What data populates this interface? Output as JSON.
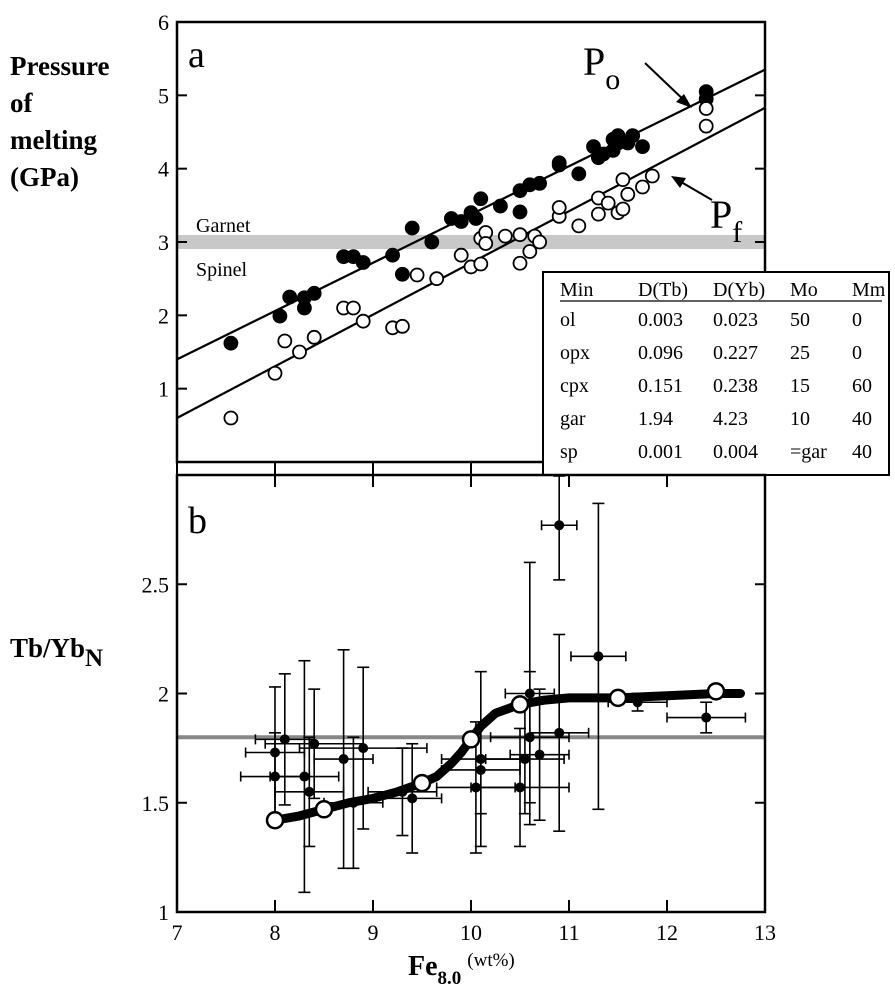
{
  "chart_data": [
    {
      "id": "a",
      "type": "scatter",
      "panel_label": "a",
      "ylabel": [
        "Pressure",
        "of",
        "melting",
        "(GPa)"
      ],
      "xlim": [
        7,
        13
      ],
      "ylim": [
        0,
        6
      ],
      "y_ticks": [
        1,
        2,
        3,
        4,
        5,
        6
      ],
      "y_tick_labels": [
        "1",
        "2",
        "3",
        "4",
        "5",
        "6"
      ],
      "x_ticks": [
        7,
        8,
        9,
        10,
        11,
        12,
        13
      ],
      "grid": false,
      "series": [
        {
          "name": "Po",
          "name_main": "P",
          "name_sub": "o",
          "marker": "filled-circle",
          "points": [
            [
              7.55,
              1.62
            ],
            [
              8.05,
              1.99
            ],
            [
              8.15,
              2.25
            ],
            [
              8.3,
              2.24
            ],
            [
              8.3,
              2.1
            ],
            [
              8.4,
              2.3
            ],
            [
              8.7,
              2.8
            ],
            [
              8.8,
              2.8
            ],
            [
              8.9,
              2.72
            ],
            [
              9.2,
              2.82
            ],
            [
              9.3,
              2.56
            ],
            [
              9.4,
              3.19
            ],
            [
              9.6,
              3.0
            ],
            [
              9.8,
              3.32
            ],
            [
              9.9,
              3.28
            ],
            [
              10.0,
              3.4
            ],
            [
              10.05,
              3.32
            ],
            [
              10.1,
              3.59
            ],
            [
              10.3,
              3.49
            ],
            [
              10.5,
              3.7
            ],
            [
              10.5,
              3.41
            ],
            [
              10.6,
              3.78
            ],
            [
              10.7,
              3.8
            ],
            [
              10.9,
              4.08
            ],
            [
              10.9,
              4.05
            ],
            [
              11.1,
              3.93
            ],
            [
              11.25,
              4.3
            ],
            [
              11.3,
              4.15
            ],
            [
              11.35,
              4.2
            ],
            [
              11.45,
              4.4
            ],
            [
              11.45,
              4.25
            ],
            [
              11.5,
              4.45
            ],
            [
              11.5,
              4.35
            ],
            [
              11.6,
              4.35
            ],
            [
              11.65,
              4.45
            ],
            [
              11.75,
              4.3
            ],
            [
              12.4,
              5.05
            ],
            [
              12.4,
              4.95
            ]
          ]
        },
        {
          "name": "Pf",
          "name_main": "P",
          "name_sub": "f",
          "marker": "open-circle",
          "points": [
            [
              7.55,
              0.6
            ],
            [
              8.0,
              1.21
            ],
            [
              8.1,
              1.65
            ],
            [
              8.25,
              1.5
            ],
            [
              8.4,
              1.7
            ],
            [
              8.7,
              2.1
            ],
            [
              8.8,
              2.1
            ],
            [
              8.9,
              1.92
            ],
            [
              9.2,
              1.83
            ],
            [
              9.3,
              1.85
            ],
            [
              9.45,
              2.55
            ],
            [
              9.65,
              2.5
            ],
            [
              9.9,
              2.82
            ],
            [
              10.0,
              2.66
            ],
            [
              10.1,
              2.7
            ],
            [
              10.1,
              3.05
            ],
            [
              10.15,
              3.13
            ],
            [
              10.15,
              2.98
            ],
            [
              10.35,
              3.08
            ],
            [
              10.5,
              3.1
            ],
            [
              10.5,
              2.71
            ],
            [
              10.6,
              2.87
            ],
            [
              10.65,
              3.08
            ],
            [
              10.7,
              3.0
            ],
            [
              10.9,
              3.35
            ],
            [
              10.9,
              3.47
            ],
            [
              11.1,
              3.22
            ],
            [
              11.3,
              3.38
            ],
            [
              11.3,
              3.6
            ],
            [
              11.4,
              3.53
            ],
            [
              11.5,
              3.4
            ],
            [
              11.55,
              3.85
            ],
            [
              11.55,
              3.45
            ],
            [
              11.6,
              3.65
            ],
            [
              11.75,
              3.75
            ],
            [
              11.85,
              3.9
            ],
            [
              12.4,
              4.82
            ],
            [
              12.4,
              4.58
            ]
          ]
        }
      ],
      "fit_lines": [
        {
          "name": "Po",
          "x": [
            7.0,
            13.0
          ],
          "y": [
            1.4,
            5.35
          ]
        },
        {
          "name": "Pf",
          "x": [
            7.0,
            13.0
          ],
          "y": [
            0.6,
            4.83
          ]
        }
      ],
      "band": {
        "y": 3.0,
        "color": "#c8c8c8",
        "label_above": "Garnet",
        "label_below": "Spinel"
      },
      "table": {
        "columns": [
          "Min",
          "D(Tb)",
          "D(Yb)",
          "Mo",
          "Mm"
        ],
        "rows": [
          [
            "ol",
            "0.003",
            "0.023",
            "50",
            "0"
          ],
          [
            "opx",
            "0.096",
            "0.227",
            "25",
            "0"
          ],
          [
            "cpx",
            "0.151",
            "0.238",
            "15",
            "60"
          ],
          [
            "gar",
            "1.94",
            "4.23",
            "10",
            "40"
          ],
          [
            "sp",
            "0.001",
            "0.004",
            "=gar",
            "40"
          ]
        ]
      }
    },
    {
      "id": "b",
      "type": "scatter",
      "panel_label": "b",
      "ylabel_main": "Tb/Yb",
      "ylabel_sub": "N",
      "xlabel_main": "Fe",
      "xlabel_sub": "8.0",
      "xlabel_unit": "(wt%)",
      "xlim": [
        7,
        13
      ],
      "ylim": [
        1,
        3
      ],
      "y_ticks": [
        1,
        1.5,
        2,
        2.5
      ],
      "y_tick_labels": [
        "1",
        "1.5",
        "2",
        "2.5"
      ],
      "x_ticks": [
        7,
        8,
        9,
        10,
        11,
        12,
        13
      ],
      "x_tick_labels": [
        "7",
        "8",
        "9",
        "10",
        "11",
        "12",
        "13"
      ],
      "grid": false,
      "reference_line": {
        "y": 1.8,
        "color": "#888888"
      },
      "data_points": [
        {
          "x": 8.0,
          "y": 1.73,
          "xerr": 0.3,
          "yerr": 0.3
        },
        {
          "x": 8.0,
          "y": 1.62,
          "xerr": 0.35,
          "yerr": 0.2
        },
        {
          "x": 8.1,
          "y": 1.79,
          "xerr": 0.3,
          "yerr": 0.3
        },
        {
          "x": 8.3,
          "y": 1.62,
          "xerr": 0.35,
          "yerr": 0.53
        },
        {
          "x": 8.35,
          "y": 1.55,
          "xerr": 0.35,
          "yerr": 0.25
        },
        {
          "x": 8.4,
          "y": 1.77,
          "xerr": 0.5,
          "yerr": 0.25
        },
        {
          "x": 8.7,
          "y": 1.7,
          "xerr": 0.3,
          "yerr": 0.5
        },
        {
          "x": 8.8,
          "y": 1.5,
          "xerr": 0.3,
          "yerr": 0.3
        },
        {
          "x": 8.9,
          "y": 1.75,
          "xerr": 0.65,
          "yerr": 0.37
        },
        {
          "x": 9.3,
          "y": 1.55,
          "xerr": 0.35,
          "yerr": 0.2
        },
        {
          "x": 9.4,
          "y": 1.52,
          "xerr": 0.3,
          "yerr": 0.25
        },
        {
          "x": 10.05,
          "y": 1.57,
          "xerr": 0.4,
          "yerr": 0.3
        },
        {
          "x": 10.1,
          "y": 1.65,
          "xerr": 0.4,
          "yerr": 0.2
        },
        {
          "x": 10.1,
          "y": 1.7,
          "xerr": 0.4,
          "yerr": 0.4
        },
        {
          "x": 10.5,
          "y": 1.57,
          "xerr": 0.5,
          "yerr": 0.27
        },
        {
          "x": 10.55,
          "y": 1.7,
          "xerr": 0.4,
          "yerr": 0.25
        },
        {
          "x": 10.6,
          "y": 2.0,
          "xerr": 0.25,
          "yerr": 0.6
        },
        {
          "x": 10.7,
          "y": 1.72,
          "xerr": 0.3,
          "yerr": 0.3
        },
        {
          "x": 10.6,
          "y": 1.8,
          "xerr": 0.4,
          "yerr": 0.3
        },
        {
          "x": 10.9,
          "y": 1.82,
          "xerr": 0.3,
          "yerr": 0.45
        },
        {
          "x": 10.9,
          "y": 2.77,
          "xerr": 0.18,
          "yerr": 0.25
        },
        {
          "x": 11.3,
          "y": 2.17,
          "xerr": 0.28,
          "yerr": 0.7
        },
        {
          "x": 11.7,
          "y": 1.96,
          "xerr": 0.3,
          "yerr": 0.04
        },
        {
          "x": 12.4,
          "y": 1.89,
          "xerr": 0.4,
          "yerr": 0.07
        }
      ],
      "model_points": [
        [
          8.0,
          1.42
        ],
        [
          8.5,
          1.47
        ],
        [
          9.5,
          1.59
        ],
        [
          10.0,
          1.79
        ],
        [
          10.5,
          1.95
        ],
        [
          11.5,
          1.98
        ],
        [
          12.5,
          2.01
        ]
      ],
      "model_curve": [
        [
          8.0,
          1.42
        ],
        [
          8.25,
          1.44
        ],
        [
          8.5,
          1.47
        ],
        [
          8.75,
          1.5
        ],
        [
          9.0,
          1.52
        ],
        [
          9.25,
          1.55
        ],
        [
          9.5,
          1.59
        ],
        [
          9.65,
          1.62
        ],
        [
          9.8,
          1.68
        ],
        [
          9.9,
          1.73
        ],
        [
          10.0,
          1.79
        ],
        [
          10.1,
          1.85
        ],
        [
          10.25,
          1.91
        ],
        [
          10.5,
          1.95
        ],
        [
          10.75,
          1.97
        ],
        [
          11.0,
          1.98
        ],
        [
          11.5,
          1.98
        ],
        [
          12.0,
          1.99
        ],
        [
          12.5,
          2.0
        ],
        [
          12.75,
          2.0
        ]
      ]
    }
  ]
}
